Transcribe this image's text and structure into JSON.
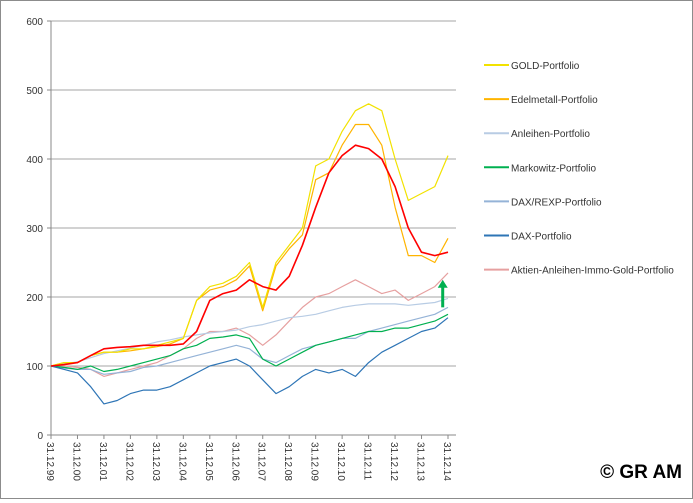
{
  "chart_data": {
    "type": "line",
    "title": "",
    "xlabel": "",
    "ylabel": "",
    "ylim": [
      0,
      600
    ],
    "yticks": [
      "0",
      "100",
      "200",
      "300",
      "400",
      "500",
      "600"
    ],
    "grid": true,
    "legend_position": "right",
    "x_tick_labels": [
      "31.12.99",
      "31.12.00",
      "31.12.01",
      "31.12.02",
      "31.12.03",
      "31.12.04",
      "31.12.05",
      "31.12.06",
      "31.12.07",
      "31.12.08",
      "31.12.09",
      "31.12.10",
      "31.12.11",
      "31.12.12",
      "31.12.13",
      "31.12.14"
    ],
    "x_years_since_start": [
      0,
      0.5,
      1,
      1.5,
      2,
      2.5,
      3,
      3.5,
      4,
      4.5,
      5,
      5.5,
      6,
      6.5,
      7,
      7.5,
      8,
      8.5,
      9,
      9.5,
      10,
      10.5,
      11,
      11.5,
      12,
      12.5,
      13,
      13.5,
      14,
      14.5,
      15
    ],
    "series": [
      {
        "name": "GOLD-Portfolio",
        "color": "#f2e200",
        "in_legend": true,
        "values": [
          100,
          105,
          105,
          115,
          120,
          120,
          125,
          125,
          130,
          135,
          140,
          195,
          215,
          220,
          230,
          250,
          185,
          250,
          275,
          300,
          390,
          400,
          440,
          470,
          480,
          470,
          400,
          340,
          350,
          360,
          405
        ]
      },
      {
        "name": "Edelmetall-Portfolio",
        "color": "#ffb400",
        "in_legend": true,
        "values": [
          100,
          105,
          105,
          115,
          120,
          120,
          122,
          125,
          128,
          132,
          140,
          195,
          210,
          215,
          225,
          245,
          180,
          245,
          270,
          290,
          370,
          380,
          420,
          450,
          450,
          420,
          330,
          260,
          260,
          250,
          285
        ]
      },
      {
        "name": "Anleihen-Portfolio",
        "color": "#b8cce4",
        "in_legend": true,
        "values": [
          100,
          103,
          106,
          112,
          118,
          122,
          126,
          130,
          135,
          138,
          142,
          145,
          148,
          150,
          152,
          157,
          160,
          165,
          170,
          172,
          175,
          180,
          185,
          188,
          190,
          190,
          190,
          188,
          190,
          192,
          198
        ]
      },
      {
        "name": "Markowitz-Portfolio",
        "color": "#00b050",
        "in_legend": true,
        "values": [
          100,
          98,
          95,
          100,
          92,
          95,
          100,
          105,
          110,
          115,
          125,
          130,
          140,
          142,
          145,
          140,
          110,
          100,
          110,
          120,
          130,
          135,
          140,
          145,
          150,
          150,
          155,
          155,
          160,
          165,
          175
        ]
      },
      {
        "name": "DAX/REXP-Portfolio",
        "color": "#95b3d7",
        "in_legend": true,
        "values": [
          100,
          97,
          95,
          95,
          88,
          90,
          92,
          98,
          100,
          105,
          110,
          115,
          120,
          125,
          130,
          125,
          110,
          105,
          115,
          125,
          130,
          135,
          140,
          140,
          150,
          155,
          160,
          165,
          170,
          175,
          185
        ]
      },
      {
        "name": "DAX-Portfolio",
        "color": "#2e75b6",
        "in_legend": true,
        "values": [
          100,
          95,
          90,
          70,
          45,
          50,
          60,
          65,
          65,
          70,
          80,
          90,
          100,
          105,
          110,
          100,
          80,
          60,
          70,
          85,
          95,
          90,
          95,
          85,
          105,
          120,
          130,
          140,
          150,
          155,
          170
        ]
      },
      {
        "name": "Aktien-Anleihen-Immo-Gold-Portfolio",
        "color": "#e6a0a0",
        "in_legend": true,
        "values": [
          100,
          100,
          98,
          95,
          85,
          90,
          95,
          100,
          105,
          115,
          125,
          140,
          150,
          150,
          155,
          145,
          130,
          145,
          165,
          185,
          200,
          205,
          215,
          225,
          215,
          205,
          210,
          195,
          205,
          215,
          235
        ]
      },
      {
        "name": "",
        "color": "#ff0000",
        "in_legend": false,
        "values": [
          100,
          102,
          105,
          115,
          125,
          127,
          128,
          130,
          130,
          130,
          132,
          150,
          195,
          205,
          210,
          225,
          215,
          210,
          230,
          275,
          330,
          380,
          405,
          420,
          415,
          400,
          360,
          300,
          265,
          260,
          265
        ]
      }
    ],
    "annotations": [
      {
        "type": "arrow-up",
        "color": "#00b050",
        "x": 14.8,
        "y_from": 185,
        "y_to": 225
      }
    ]
  },
  "copyright": "© GR AM"
}
